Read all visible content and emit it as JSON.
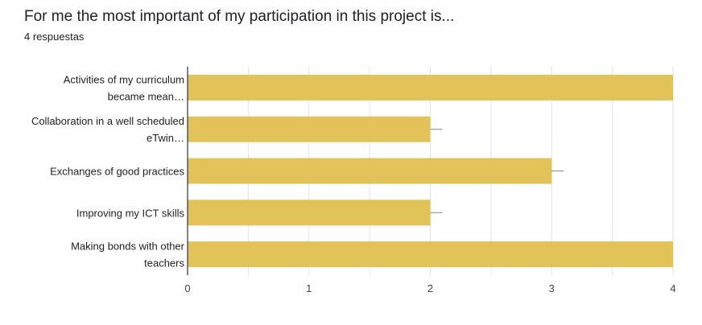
{
  "title": "For me the most important of my participation in this project is...",
  "subtitle": "4 respuestas",
  "colors": {
    "bar": "#e2c35a",
    "grid": "#e3e3e3",
    "axis": "#333333",
    "error_bar": "#888888"
  },
  "chart_data": {
    "type": "bar",
    "orientation": "horizontal",
    "categories": [
      [
        "Activities of my curriculum",
        "became mean…"
      ],
      [
        "Collaboration in a well scheduled",
        "eTwin…"
      ],
      [
        "Exchanges of good practices"
      ],
      [
        "Improving my ICT skills"
      ],
      [
        "Making bonds with other",
        "teachers"
      ]
    ],
    "values": [
      4,
      2,
      3,
      2,
      4
    ],
    "xlim": [
      0,
      4
    ],
    "x_ticks": [
      0,
      1,
      2,
      3,
      4
    ],
    "grid": true,
    "legend": "none"
  }
}
